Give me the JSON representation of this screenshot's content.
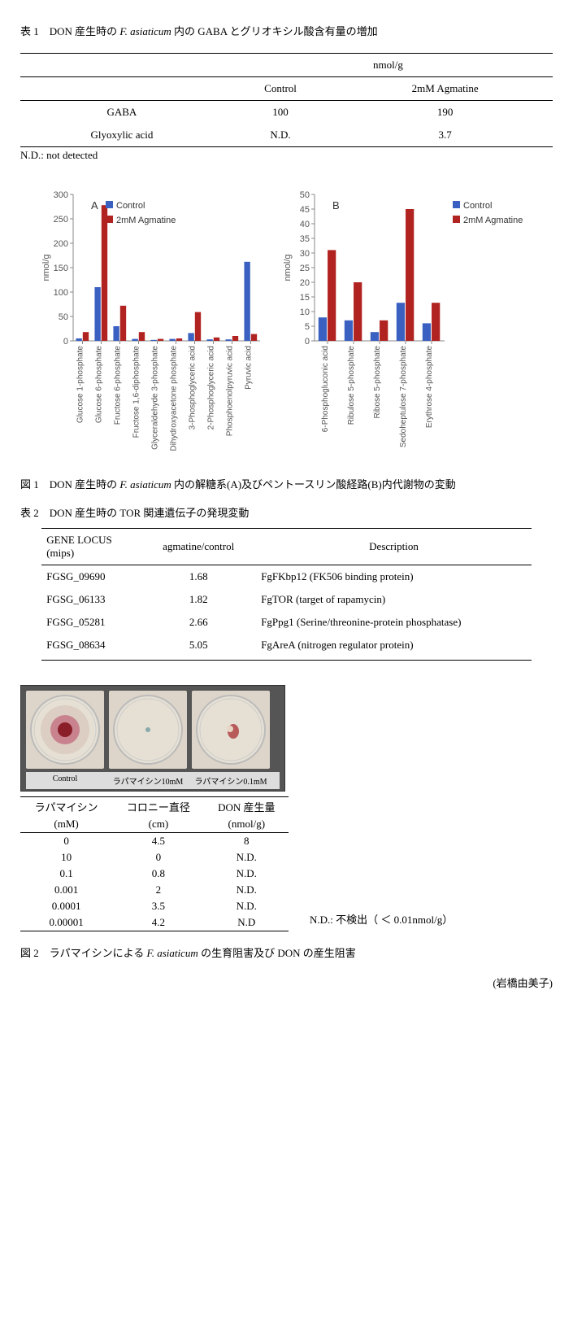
{
  "table1": {
    "caption_prefix": "表 1　DON 産生時の ",
    "caption_italic": "F. asiaticum",
    "caption_suffix": " 内の GABA とグリオキシル酸含有量の増加",
    "unit_header": "nmol/g",
    "col_control": "Control",
    "col_agmatine": "2mM Agmatine",
    "rows": [
      {
        "name": "GABA",
        "control": "100",
        "agmatine": "190"
      },
      {
        "name": "Glyoxylic acid",
        "control": "N.D.",
        "agmatine": "3.7"
      }
    ],
    "note": "N.D.: not detected"
  },
  "figure1": {
    "caption_prefix": "図 1　DON 産生時の ",
    "caption_italic": "F. asiaticum",
    "caption_suffix": " 内の解糖系(A)及びペントースリン酸経路(B)内代謝物の変動",
    "legend_control": "Control",
    "legend_agmatine": "2mM Agmatine",
    "color_control": "#3a61c1",
    "color_agmatine": "#b12321",
    "chartA": {
      "label": "A",
      "ylabel": "nmol/g",
      "ymax": 300,
      "ytick": 50,
      "categories": [
        "Glucose 1-phosphate",
        "Glucose 6-phosphate",
        "Fructose 6-phosphate",
        "Fructose 1,6-diphosphate",
        "Glyceraldehyde 3-phosphate",
        "Dihydroxyacetone phosphate",
        "3-Phosphoglyceric acid",
        "2-Phosphoglyceric acid",
        "Phosphoenolpyruvic acid",
        "Pyruvic acid"
      ],
      "control": [
        5,
        110,
        30,
        4,
        2,
        4,
        16,
        3,
        3,
        162
      ],
      "agmatine": [
        18,
        278,
        72,
        18,
        4,
        5,
        59,
        7,
        10,
        14
      ]
    },
    "chartB": {
      "label": "B",
      "ylabel": "nmol/g",
      "ymax": 50,
      "ytick": 5,
      "categories": [
        "6-Phosphogluconic acid",
        "Ribulose 5-phosphate",
        "Ribose 5-phosphate",
        "Sedoheptulose 7-phosphate",
        "Erythrose 4-phosphate"
      ],
      "control": [
        8,
        7,
        3,
        13,
        6
      ],
      "agmatine": [
        31,
        20,
        7,
        45,
        13
      ]
    }
  },
  "table2": {
    "caption": "表 2　DON 産生時の TOR 関連遺伝子の発現変動",
    "col_locus": "GENE LOCUS",
    "col_locus_sub": "(mips)",
    "col_ratio": "agmatine/control",
    "col_desc": "Description",
    "rows": [
      {
        "locus": "FGSG_09690",
        "ratio": "1.68",
        "desc": "FgFKbp12 (FK506 binding protein)"
      },
      {
        "locus": "FGSG_06133",
        "ratio": "1.82",
        "desc": "FgTOR (target of rapamycin)"
      },
      {
        "locus": "FGSG_05281",
        "ratio": "2.66",
        "desc": "FgPpg1 (Serine/threonine-protein phosphatase)"
      },
      {
        "locus": "FGSG_08634",
        "ratio": "5.05",
        "desc": "FgAreA (nitrogen regulator protein)"
      }
    ]
  },
  "figure2": {
    "dishes": [
      {
        "label": "Control",
        "type": "full"
      },
      {
        "label": "ラパマイシン10mM",
        "type": "none"
      },
      {
        "label": "ラパマイシン0.1mM",
        "type": "small"
      }
    ],
    "table": {
      "col_rap": "ラパマイシン",
      "col_rap_sub": "(mM)",
      "col_diam": "コロニー直径",
      "col_diam_sub": "(cm)",
      "col_don": "DON 産生量",
      "col_don_sub": "(nmol/g)",
      "rows": [
        {
          "rap": "0",
          "diam": "4.5",
          "don": "8"
        },
        {
          "rap": "10",
          "diam": "0",
          "don": "N.D."
        },
        {
          "rap": "0.1",
          "diam": "0.8",
          "don": "N.D."
        },
        {
          "rap": "0.001",
          "diam": "2",
          "don": "N.D."
        },
        {
          "rap": "0.0001",
          "diam": "3.5",
          "don": "N.D."
        },
        {
          "rap": "0.00001",
          "diam": "4.2",
          "don": "N.D"
        }
      ]
    },
    "note": "N.D.: 不検出（ ＜ 0.01nmol/g）",
    "caption_prefix": "図 2　ラパマイシンによる ",
    "caption_italic": "F. asiaticum",
    "caption_suffix": " の生育阻害及び DON の産生阻害"
  },
  "author": "(岩橋由美子)"
}
